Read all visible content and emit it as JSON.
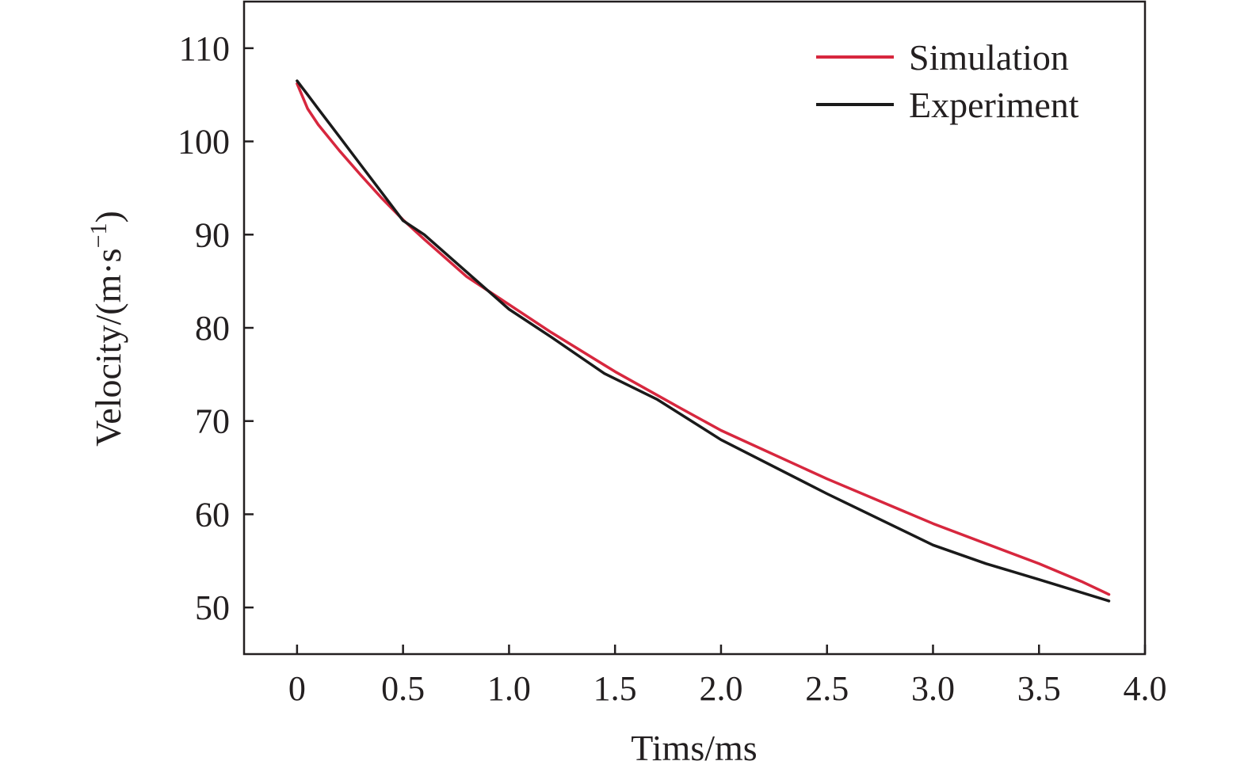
{
  "chart_data": {
    "type": "line",
    "xlabel": "Tims/ms",
    "ylabel_main": "Velocity/(m·s",
    "ylabel_sup": "−1",
    "ylabel_close": ")",
    "xlim": [
      -0.25,
      4.0
    ],
    "ylim": [
      45,
      115
    ],
    "x_ticks": [
      0,
      0.5,
      1.0,
      1.5,
      2.0,
      2.5,
      3.0,
      3.5,
      4.0
    ],
    "x_tick_labels": [
      "0",
      "0.5",
      "1.0",
      "1.5",
      "2.0",
      "2.5",
      "3.0",
      "3.5",
      "4.0"
    ],
    "y_ticks": [
      50,
      60,
      70,
      80,
      90,
      100,
      110
    ],
    "y_tick_labels": [
      "50",
      "60",
      "70",
      "80",
      "90",
      "100",
      "110"
    ],
    "grid": false,
    "legend_position": "top-right",
    "series": [
      {
        "name": "Simulation",
        "color": "#d7273e",
        "x": [
          0,
          0.05,
          0.1,
          0.2,
          0.3,
          0.4,
          0.5,
          0.6,
          0.8,
          1.0,
          1.2,
          1.5,
          1.8,
          2.0,
          2.5,
          3.0,
          3.5,
          3.7,
          3.83
        ],
        "y": [
          106.2,
          103.5,
          101.8,
          99.0,
          96.4,
          93.9,
          91.6,
          89.5,
          85.5,
          82.5,
          79.5,
          75.3,
          71.5,
          69.0,
          63.8,
          59.0,
          54.7,
          52.8,
          51.4
        ]
      },
      {
        "name": "Experiment",
        "color": "#1a1a1a",
        "x": [
          0,
          0.05,
          0.1,
          0.2,
          0.3,
          0.4,
          0.5,
          0.6,
          0.8,
          1.0,
          1.2,
          1.45,
          1.7,
          2.0,
          2.5,
          3.0,
          3.25,
          3.5,
          3.83
        ],
        "y": [
          106.5,
          105.0,
          103.5,
          100.5,
          97.5,
          94.5,
          91.5,
          90.0,
          86.0,
          82.0,
          79.0,
          75.1,
          72.3,
          68.0,
          62.2,
          56.7,
          54.7,
          53.0,
          50.7
        ]
      }
    ]
  }
}
